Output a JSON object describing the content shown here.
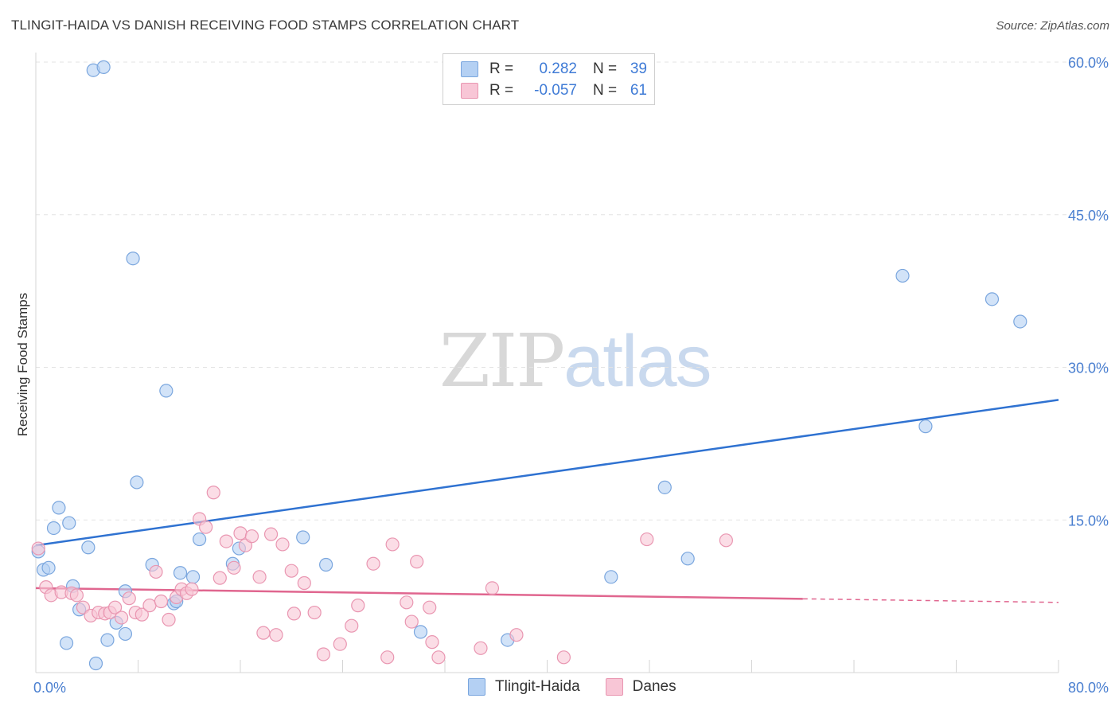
{
  "title": "TLINGIT-HAIDA VS DANISH RECEIVING FOOD STAMPS CORRELATION CHART",
  "source": "Source: ZipAtlas.com",
  "watermark": {
    "zip": "ZIP",
    "atlas": "atlas"
  },
  "legend": {
    "rows": [
      {
        "r_label": "R =",
        "r_value": "0.282",
        "n_label": "N =",
        "n_value": "39",
        "color": "#b4d0f3",
        "border": "#7aa6de"
      },
      {
        "r_label": "R =",
        "r_value": "-0.057",
        "n_label": "N =",
        "n_value": "61",
        "color": "#f8c6d6",
        "border": "#e996b1"
      }
    ]
  },
  "bottom_legend": [
    {
      "label": "Tlingit-Haida",
      "color": "#b4d0f3",
      "border": "#7aa6de"
    },
    {
      "label": "Danes",
      "color": "#f8c6d6",
      "border": "#e996b1"
    }
  ],
  "chart_data": {
    "type": "scatter",
    "title": "TLINGIT-HAIDA VS DANISH RECEIVING FOOD STAMPS CORRELATION CHART",
    "xlabel": "",
    "ylabel": "Receiving Food Stamps",
    "xlim": [
      0,
      80
    ],
    "ylim": [
      0,
      60
    ],
    "x_tick_labels": [
      "0.0%",
      "80.0%"
    ],
    "y_ticks": [
      15,
      30,
      45,
      60
    ],
    "y_tick_labels": [
      "15.0%",
      "30.0%",
      "45.0%",
      "60.0%"
    ],
    "grid": true,
    "series": [
      {
        "name": "Tlingit-Haida",
        "color": "#7aa6de",
        "fill": "#b4d0f3",
        "line_color": "#2f72d1",
        "trend": {
          "x0": 0,
          "y0": 12.5,
          "x1": 80,
          "y1": 26.8,
          "dash_from": null
        },
        "points": [
          [
            4.5,
            59.2
          ],
          [
            5.3,
            59.5
          ],
          [
            7.6,
            40.7
          ],
          [
            10.2,
            27.7
          ],
          [
            7.9,
            18.7
          ],
          [
            1.8,
            16.2
          ],
          [
            1.4,
            14.2
          ],
          [
            2.6,
            14.7
          ],
          [
            4.1,
            12.3
          ],
          [
            0.2,
            11.9
          ],
          [
            0.6,
            10.1
          ],
          [
            1.0,
            10.3
          ],
          [
            9.1,
            10.6
          ],
          [
            11.3,
            9.8
          ],
          [
            12.3,
            9.4
          ],
          [
            2.9,
            8.5
          ],
          [
            7.0,
            8.0
          ],
          [
            10.8,
            6.8
          ],
          [
            11.0,
            7.0
          ],
          [
            3.4,
            6.2
          ],
          [
            6.3,
            4.9
          ],
          [
            7.0,
            3.8
          ],
          [
            2.4,
            2.9
          ],
          [
            5.6,
            3.2
          ],
          [
            4.7,
            0.9
          ],
          [
            12.8,
            13.1
          ],
          [
            15.4,
            10.7
          ],
          [
            15.9,
            12.2
          ],
          [
            20.9,
            13.3
          ],
          [
            22.7,
            10.6
          ],
          [
            30.1,
            4.0
          ],
          [
            36.9,
            3.2
          ],
          [
            45.0,
            9.4
          ],
          [
            49.2,
            18.2
          ],
          [
            51.0,
            11.2
          ],
          [
            67.8,
            39.0
          ],
          [
            74.8,
            36.7
          ],
          [
            77.0,
            34.5
          ],
          [
            69.6,
            24.2
          ]
        ]
      },
      {
        "name": "Danes",
        "color": "#e996b1",
        "fill": "#f8c6d6",
        "line_color": "#e0668f",
        "trend": {
          "x0": 0,
          "y0": 8.3,
          "x1": 80,
          "y1": 6.9,
          "dash_from": 60
        },
        "points": [
          [
            0.2,
            12.2
          ],
          [
            0.8,
            8.4
          ],
          [
            1.2,
            7.6
          ],
          [
            2.0,
            7.9
          ],
          [
            2.8,
            7.8
          ],
          [
            3.2,
            7.6
          ],
          [
            3.7,
            6.4
          ],
          [
            4.3,
            5.6
          ],
          [
            4.9,
            5.9
          ],
          [
            5.4,
            5.8
          ],
          [
            5.8,
            5.9
          ],
          [
            6.2,
            6.4
          ],
          [
            6.7,
            5.4
          ],
          [
            7.3,
            7.3
          ],
          [
            7.8,
            5.9
          ],
          [
            8.3,
            5.7
          ],
          [
            8.9,
            6.6
          ],
          [
            9.4,
            9.9
          ],
          [
            9.8,
            7.0
          ],
          [
            10.4,
            5.2
          ],
          [
            11.0,
            7.4
          ],
          [
            11.4,
            8.2
          ],
          [
            11.8,
            7.8
          ],
          [
            12.2,
            8.2
          ],
          [
            12.8,
            15.1
          ],
          [
            13.3,
            14.3
          ],
          [
            13.9,
            17.7
          ],
          [
            14.4,
            9.3
          ],
          [
            14.9,
            12.9
          ],
          [
            15.5,
            10.3
          ],
          [
            16.0,
            13.7
          ],
          [
            16.4,
            12.5
          ],
          [
            16.9,
            13.4
          ],
          [
            17.5,
            9.4
          ],
          [
            17.8,
            3.9
          ],
          [
            18.4,
            13.6
          ],
          [
            18.8,
            3.7
          ],
          [
            19.3,
            12.6
          ],
          [
            20.0,
            10.0
          ],
          [
            20.2,
            5.8
          ],
          [
            21.0,
            8.8
          ],
          [
            21.8,
            5.9
          ],
          [
            22.5,
            1.8
          ],
          [
            23.8,
            2.8
          ],
          [
            24.7,
            4.6
          ],
          [
            25.2,
            6.6
          ],
          [
            26.4,
            10.7
          ],
          [
            27.5,
            1.5
          ],
          [
            27.9,
            12.6
          ],
          [
            29.0,
            6.9
          ],
          [
            29.4,
            5.0
          ],
          [
            29.8,
            10.9
          ],
          [
            30.8,
            6.4
          ],
          [
            31.5,
            1.5
          ],
          [
            34.8,
            2.4
          ],
          [
            35.7,
            8.3
          ],
          [
            37.6,
            3.7
          ],
          [
            41.3,
            1.5
          ],
          [
            47.8,
            13.1
          ],
          [
            54.0,
            13.0
          ],
          [
            31.0,
            3.0
          ]
        ]
      }
    ]
  }
}
